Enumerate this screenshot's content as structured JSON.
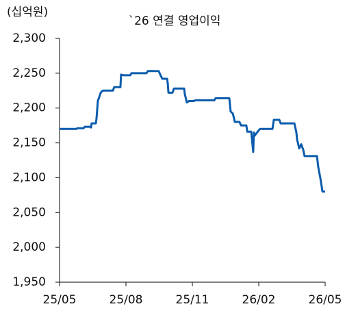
{
  "chart_data": {
    "type": "line",
    "title": "`26 연결 영업이익",
    "y_label": "(십억원)",
    "x": [
      0,
      0.77,
      0.8,
      1.08,
      1.14,
      1.39,
      1.42,
      1.45,
      1.64,
      1.67,
      1.73,
      1.86,
      1.95,
      2.41,
      2.47,
      2.75,
      2.78,
      2.88,
      3.19,
      3.25,
      3.93,
      3.99,
      4.48,
      4.55,
      4.64,
      4.86,
      4.89,
      4.92,
      5.1,
      5.17,
      5.63,
      5.66,
      5.75,
      5.85,
      6.06,
      6.12,
      6.99,
      7.05,
      7.67,
      7.73,
      7.83,
      7.92,
      8.13,
      8.2,
      8.44,
      8.48,
      8.66,
      8.75,
      8.78,
      8.81,
      9.0,
      9.06,
      9.62,
      9.68,
      9.93,
      9.99,
      10.61,
      10.7,
      10.73,
      10.83,
      10.92,
      11.01,
      11.07,
      11.63,
      11.69,
      11.78,
      11.88,
      12
    ],
    "series": [
      {
        "color": "#0b5cad",
        "values": [
          2170,
          2170,
          2171,
          2171,
          2173,
          2173,
          2172,
          2178,
          2178,
          2185,
          2210,
          2222,
          2225,
          2225,
          2230,
          2230,
          2248,
          2247,
          2247,
          2250,
          2250,
          2253,
          2253,
          2248,
          2242,
          2242,
          2235,
          2222,
          2222,
          2228,
          2228,
          2220,
          2208,
          2210,
          2210,
          2211,
          2211,
          2214,
          2214,
          2195,
          2192,
          2180,
          2180,
          2175,
          2175,
          2166,
          2166,
          2137,
          2165,
          2160,
          2168,
          2170,
          2170,
          2183,
          2183,
          2178,
          2178,
          2165,
          2155,
          2142,
          2148,
          2140,
          2131,
          2131,
          2115,
          2100,
          2080,
          2080
        ]
      }
    ],
    "xlim": [
      0,
      12
    ],
    "xticks": [
      {
        "value": 0,
        "label": "25/05"
      },
      {
        "value": 3,
        "label": "25/08"
      },
      {
        "value": 6,
        "label": "25/11"
      },
      {
        "value": 9,
        "label": "26/02"
      },
      {
        "value": 12,
        "label": "26/05"
      }
    ],
    "ylim": [
      1950,
      2300
    ],
    "yticks": [
      {
        "value": 1950,
        "label": "1,950"
      },
      {
        "value": 2000,
        "label": "2,000"
      },
      {
        "value": 2050,
        "label": "2,050"
      },
      {
        "value": 2100,
        "label": "2,100"
      },
      {
        "value": 2150,
        "label": "2,150"
      },
      {
        "value": 2200,
        "label": "2,200"
      },
      {
        "value": 2250,
        "label": "2,250"
      },
      {
        "value": 2300,
        "label": "2,300"
      }
    ],
    "grid": false
  }
}
